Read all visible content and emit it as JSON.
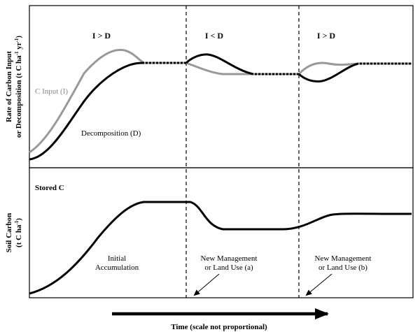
{
  "top_panel": {
    "y_axis_label_line1": "Rate of Carbon Input",
    "y_axis_label_line2": "or Decomposition (t C ha",
    "y_axis_label_sup1": "-1",
    "y_axis_label_mid": " yr",
    "y_axis_label_sup2": "-1",
    "y_axis_label_end": ")",
    "phase_labels": [
      "I > D",
      "I < D",
      "I > D"
    ],
    "c_input_label": "C Input (I)",
    "decomposition_label": "Decomposition (D)"
  },
  "bottom_panel": {
    "y_axis_label_line1": "Soil Carbon",
    "y_axis_label_line2": "(t C ha",
    "y_axis_label_sup": "-1",
    "y_axis_label_end": ")",
    "title": "Stored C",
    "annotation_initial_line1": "Initial",
    "annotation_initial_line2": "Accumulation",
    "annotation_a_line1": "New Management",
    "annotation_a_line2": "or Land Use (a)",
    "annotation_b_line1": "New Management",
    "annotation_b_line2": "or Land Use (b)"
  },
  "x_axis": {
    "label": "Time (scale not proportional)"
  },
  "colors": {
    "c_input": "#999999",
    "decomposition": "#000000",
    "frame": "#000000"
  }
}
